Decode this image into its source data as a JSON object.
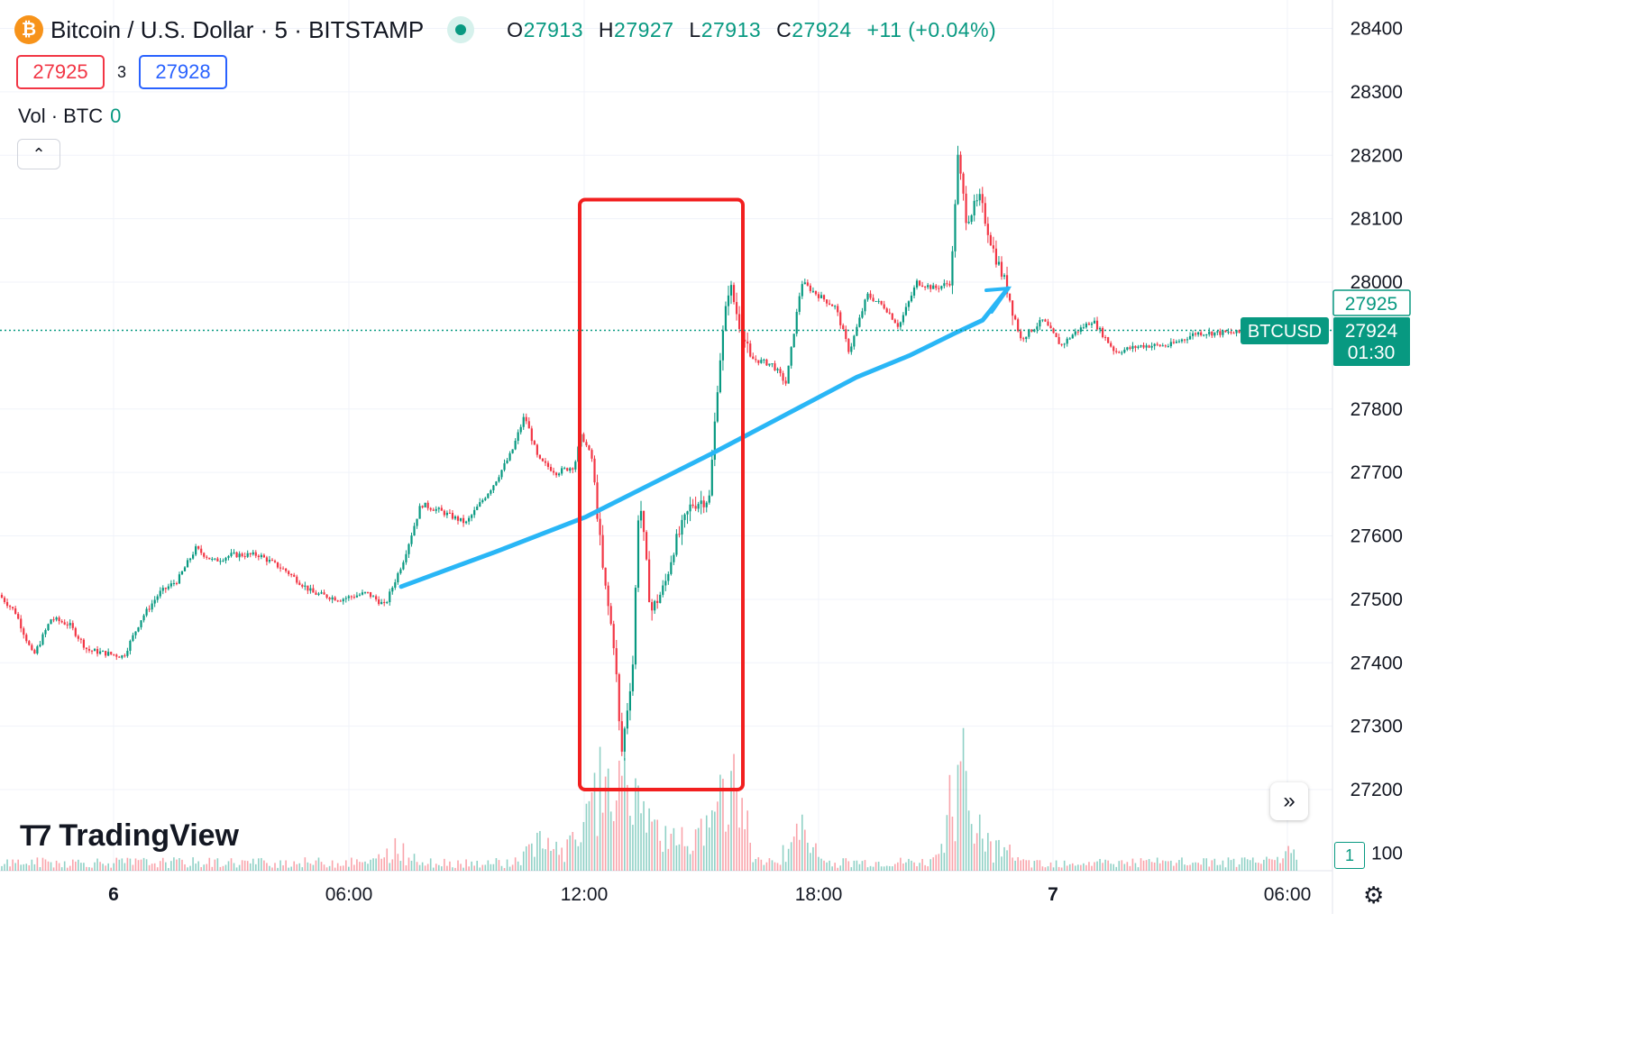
{
  "header": {
    "symbol_title": "Bitcoin / U.S. Dollar · 5 · BITSTAMP",
    "logo_glyph": "₿",
    "ohlc": {
      "o_label": "O",
      "o": "27913",
      "h_label": "H",
      "h": "27927",
      "l_label": "L",
      "l": "27913",
      "c_label": "C",
      "c": "27924",
      "change": "+11 (+0.04%)"
    },
    "sell_price": "27925",
    "spread": "3",
    "buy_price": "27928"
  },
  "volume_legend": {
    "label": "Vol · BTC",
    "value": "0"
  },
  "controls": {
    "collapse_icon": "chevron-up-icon",
    "scroll_icon": "double-chevron-right-icon",
    "settings_icon": "gear-icon"
  },
  "branding": {
    "text": "TradingView"
  },
  "price_scale": {
    "ticks": [
      "28400",
      "28300",
      "28200",
      "28100",
      "28000",
      "27925",
      "27924",
      "01:30",
      "27800",
      "27700",
      "27600",
      "27500",
      "27400",
      "27300",
      "27200",
      "100"
    ],
    "last_price_label": "27924",
    "countdown": "01:30",
    "ask_label": "27925",
    "symbol_tag": "BTCUSD",
    "badge": "1"
  },
  "time_scale": {
    "ticks": [
      "6",
      "06:00",
      "12:00",
      "18:00",
      "7",
      "06:00"
    ]
  },
  "colors": {
    "up": "#089981",
    "down": "#f23645",
    "ma": "#29b6f6",
    "highlight": "#f21f1f",
    "grid": "#f0f3fa"
  },
  "chart_data": {
    "type": "candlestick",
    "title": "Bitcoin / U.S. Dollar · 5 · BITSTAMP",
    "ylim": [
      27130,
      28440
    ],
    "y_ticks": [
      28400,
      28300,
      28200,
      28100,
      28000,
      27800,
      27700,
      27600,
      27500,
      27400,
      27300,
      27200
    ],
    "x_ticks": [
      "6",
      "06:00",
      "12:00",
      "18:00",
      "7",
      "06:00"
    ],
    "last_price": 27924,
    "price_path": [
      [
        0,
        27510
      ],
      [
        20,
        27480
      ],
      [
        40,
        27410
      ],
      [
        60,
        27470
      ],
      [
        80,
        27460
      ],
      [
        100,
        27420
      ],
      [
        120,
        27415
      ],
      [
        140,
        27410
      ],
      [
        160,
        27470
      ],
      [
        180,
        27510
      ],
      [
        200,
        27530
      ],
      [
        220,
        27580
      ],
      [
        240,
        27560
      ],
      [
        260,
        27570
      ],
      [
        290,
        27570
      ],
      [
        320,
        27545
      ],
      [
        350,
        27510
      ],
      [
        380,
        27500
      ],
      [
        410,
        27510
      ],
      [
        430,
        27490
      ],
      [
        450,
        27560
      ],
      [
        470,
        27650
      ],
      [
        490,
        27640
      ],
      [
        520,
        27620
      ],
      [
        550,
        27680
      ],
      [
        570,
        27730
      ],
      [
        585,
        27790
      ],
      [
        600,
        27720
      ],
      [
        620,
        27700
      ],
      [
        640,
        27710
      ],
      [
        648,
        27760
      ],
      [
        660,
        27720
      ],
      [
        672,
        27540
      ],
      [
        685,
        27420
      ],
      [
        692,
        27250
      ],
      [
        705,
        27400
      ],
      [
        712,
        27670
      ],
      [
        725,
        27480
      ],
      [
        740,
        27520
      ],
      [
        750,
        27580
      ],
      [
        770,
        27650
      ],
      [
        790,
        27660
      ],
      [
        800,
        27860
      ],
      [
        812,
        28000
      ],
      [
        822,
        27940
      ],
      [
        835,
        27880
      ],
      [
        860,
        27870
      ],
      [
        875,
        27840
      ],
      [
        892,
        28000
      ],
      [
        910,
        27980
      ],
      [
        930,
        27960
      ],
      [
        945,
        27890
      ],
      [
        965,
        27980
      ],
      [
        985,
        27960
      ],
      [
        1000,
        27930
      ],
      [
        1020,
        28000
      ],
      [
        1040,
        27990
      ],
      [
        1058,
        28000
      ],
      [
        1065,
        28200
      ],
      [
        1075,
        28100
      ],
      [
        1090,
        28130
      ],
      [
        1105,
        28050
      ],
      [
        1120,
        27990
      ],
      [
        1135,
        27910
      ],
      [
        1160,
        27940
      ],
      [
        1180,
        27900
      ],
      [
        1195,
        27920
      ],
      [
        1215,
        27940
      ],
      [
        1240,
        27890
      ],
      [
        1270,
        27900
      ],
      [
        1300,
        27900
      ],
      [
        1330,
        27920
      ],
      [
        1360,
        27920
      ],
      [
        1400,
        27920
      ],
      [
        1440,
        27924
      ]
    ],
    "moving_average": [
      [
        445,
        27520
      ],
      [
        550,
        27575
      ],
      [
        650,
        27630
      ],
      [
        720,
        27680
      ],
      [
        790,
        27730
      ],
      [
        870,
        27790
      ],
      [
        950,
        27850
      ],
      [
        1010,
        27885
      ],
      [
        1060,
        27920
      ],
      [
        1090,
        27940
      ],
      [
        1118,
        27990
      ]
    ],
    "highlight_range": {
      "y": [
        27200,
        28130
      ]
    },
    "volume_spikes": [
      [
        443,
        0.25
      ],
      [
        600,
        0.4
      ],
      [
        643,
        0.4
      ],
      [
        668,
        0.85
      ],
      [
        690,
        0.6
      ],
      [
        712,
        0.6
      ],
      [
        800,
        0.55
      ],
      [
        812,
        0.6
      ],
      [
        887,
        0.5
      ],
      [
        1063,
        0.85
      ],
      [
        1068,
        0.6
      ],
      [
        1430,
        0.2
      ]
    ]
  }
}
